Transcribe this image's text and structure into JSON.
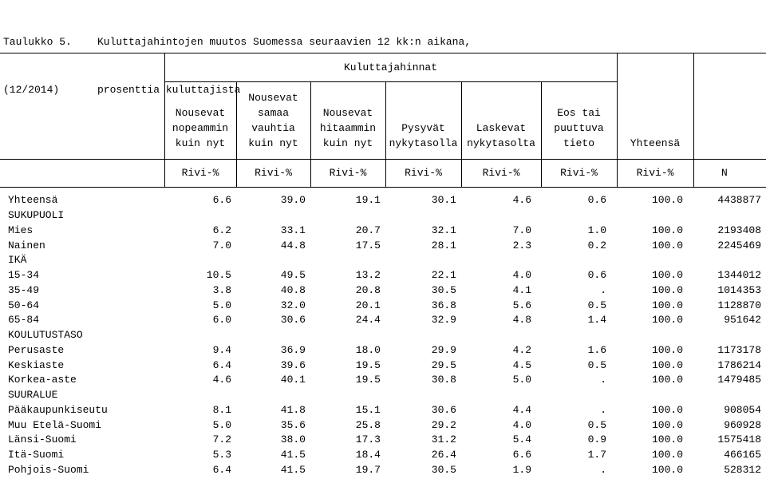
{
  "title": {
    "line1_left": "Taulukko 5.",
    "line1_right": "Kuluttajahintojen muutos Suomessa seuraavien 12 kk:n aikana,",
    "line2_left": "(12/2014)",
    "line2_right": "prosenttia kuluttajista"
  },
  "header": {
    "group": "Kuluttajahinnat",
    "columns": [
      [
        "",
        "Nousevat",
        "nopeammin",
        "kuin nyt"
      ],
      [
        "Nousevat",
        "samaa",
        "vauhtia",
        "kuin nyt"
      ],
      [
        "",
        "Nousevat",
        "hitaammin",
        "kuin nyt"
      ],
      [
        "",
        "",
        "Pysyvät",
        "nykytasolla"
      ],
      [
        "",
        "",
        "Laskevat",
        "nykytasolta"
      ],
      [
        "",
        "Eos tai",
        "puuttuva",
        "tieto"
      ],
      [
        "",
        "",
        "",
        "Yhteensä"
      ]
    ],
    "units": [
      "Rivi-%",
      "Rivi-%",
      "Rivi-%",
      "Rivi-%",
      "Rivi-%",
      "Rivi-%",
      "Rivi-%",
      "N"
    ]
  },
  "rows": [
    {
      "label": "Yhteensä",
      "values": [
        "6.6",
        "39.0",
        "19.1",
        "30.1",
        "4.6",
        "0.6",
        "100.0",
        "4438877"
      ]
    },
    {
      "label": "SUKUPUOLI",
      "values": [
        "",
        "",
        "",
        "",
        "",
        "",
        "",
        ""
      ]
    },
    {
      "label": "Mies",
      "values": [
        "6.2",
        "33.1",
        "20.7",
        "32.1",
        "7.0",
        "1.0",
        "100.0",
        "2193408"
      ]
    },
    {
      "label": "Nainen",
      "values": [
        "7.0",
        "44.8",
        "17.5",
        "28.1",
        "2.3",
        "0.2",
        "100.0",
        "2245469"
      ]
    },
    {
      "label": "IKÄ",
      "values": [
        "",
        "",
        "",
        "",
        "",
        "",
        "",
        ""
      ]
    },
    {
      "label": "15-34",
      "values": [
        "10.5",
        "49.5",
        "13.2",
        "22.1",
        "4.0",
        "0.6",
        "100.0",
        "1344012"
      ]
    },
    {
      "label": "35-49",
      "values": [
        "3.8",
        "40.8",
        "20.8",
        "30.5",
        "4.1",
        ".",
        "100.0",
        "1014353"
      ]
    },
    {
      "label": "50-64",
      "values": [
        "5.0",
        "32.0",
        "20.1",
        "36.8",
        "5.6",
        "0.5",
        "100.0",
        "1128870"
      ]
    },
    {
      "label": "65-84",
      "values": [
        "6.0",
        "30.6",
        "24.4",
        "32.9",
        "4.8",
        "1.4",
        "100.0",
        "951642"
      ]
    },
    {
      "label": "KOULUTUSTASO",
      "values": [
        "",
        "",
        "",
        "",
        "",
        "",
        "",
        ""
      ]
    },
    {
      "label": "Perusaste",
      "values": [
        "9.4",
        "36.9",
        "18.0",
        "29.9",
        "4.2",
        "1.6",
        "100.0",
        "1173178"
      ]
    },
    {
      "label": "Keskiaste",
      "values": [
        "6.4",
        "39.6",
        "19.5",
        "29.5",
        "4.5",
        "0.5",
        "100.0",
        "1786214"
      ]
    },
    {
      "label": "Korkea-aste",
      "values": [
        "4.6",
        "40.1",
        "19.5",
        "30.8",
        "5.0",
        ".",
        "100.0",
        "1479485"
      ]
    },
    {
      "label": "SUURALUE",
      "values": [
        "",
        "",
        "",
        "",
        "",
        "",
        "",
        ""
      ]
    },
    {
      "label": "Pääkaupunkiseutu",
      "values": [
        "8.1",
        "41.8",
        "15.1",
        "30.6",
        "4.4",
        ".",
        "100.0",
        "908054"
      ]
    },
    {
      "label": "Muu Etelä-Suomi",
      "values": [
        "5.0",
        "35.6",
        "25.8",
        "29.2",
        "4.0",
        "0.5",
        "100.0",
        "960928"
      ]
    },
    {
      "label": "Länsi-Suomi",
      "values": [
        "7.2",
        "38.0",
        "17.3",
        "31.2",
        "5.4",
        "0.9",
        "100.0",
        "1575418"
      ]
    },
    {
      "label": "Itä-Suomi",
      "values": [
        "5.3",
        "41.5",
        "18.4",
        "26.4",
        "6.6",
        "1.7",
        "100.0",
        "466165"
      ]
    },
    {
      "label": "Pohjois-Suomi",
      "values": [
        "6.4",
        "41.5",
        "19.7",
        "30.5",
        "1.9",
        ".",
        "100.0",
        "528312"
      ]
    }
  ]
}
